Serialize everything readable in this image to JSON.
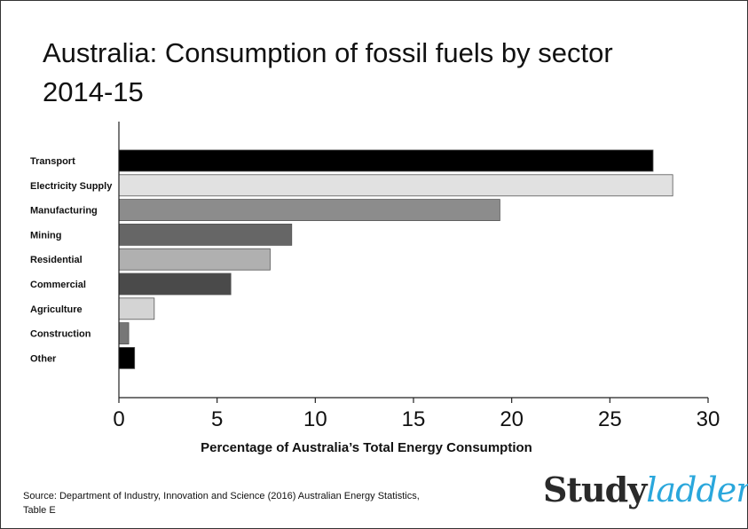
{
  "chart_data": {
    "type": "bar",
    "orientation": "horizontal",
    "title_line1": "Australia: Consumption of fossil fuels by sector",
    "title_line2": "2014-15",
    "xlabel": "Percentage of Australia’s Total Energy Consumption",
    "ylabel": "",
    "xlim": [
      0,
      30
    ],
    "xticks": [
      "0",
      "5",
      "10",
      "15",
      "20",
      "25",
      "30"
    ],
    "categories": [
      "Transport",
      "Electricity Supply",
      "Manufacturing",
      "Mining",
      "Residential",
      "Commercial",
      "Agriculture",
      "Construction",
      "Other"
    ],
    "values": [
      27.2,
      28.2,
      19.4,
      8.8,
      7.7,
      5.7,
      1.8,
      0.5,
      0.8
    ],
    "colors": [
      "#000000",
      "#e1e1e1",
      "#8c8c8c",
      "#666666",
      "#b0b0b0",
      "#4a4a4a",
      "#d4d4d4",
      "#777777",
      "#000000"
    ],
    "grid": false,
    "legend": "none"
  },
  "source_line1": "Source: Department of Industry, Innovation and Science (2016) Australian Energy Statistics,",
  "source_line2": "Table E",
  "logo": {
    "part1": "Study",
    "part2": "ladder"
  }
}
